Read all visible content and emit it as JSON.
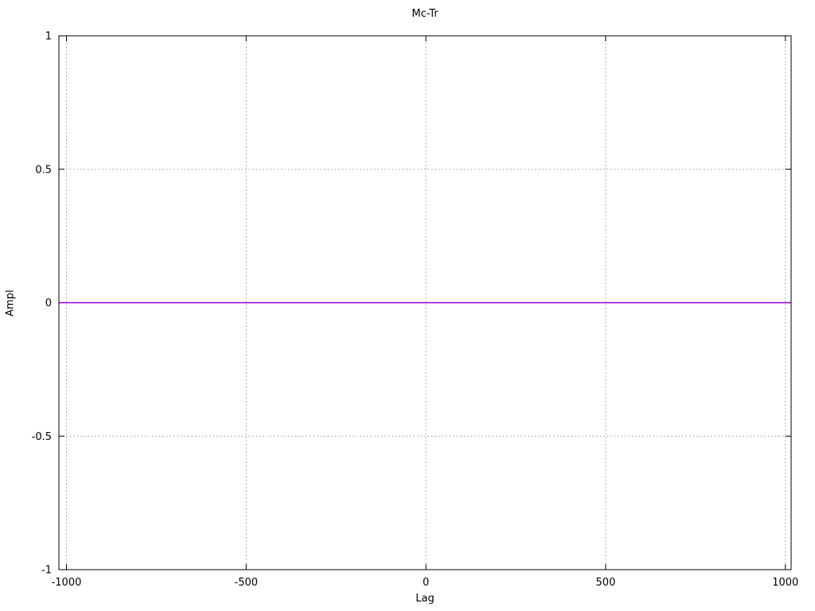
{
  "chart_data": {
    "type": "line",
    "title": "Mc-Tr",
    "xlabel": "Lag",
    "ylabel": "Ampl",
    "xlim": [
      -1021,
      1016
    ],
    "ylim": [
      -1,
      1
    ],
    "xticks": [
      -1000,
      -500,
      0,
      500,
      1000
    ],
    "yticks": [
      -1,
      -0.5,
      0,
      0.5,
      1
    ],
    "grid": true,
    "grid_style": "dotted",
    "legend": "none",
    "colors": {
      "background": "#ffffff",
      "grid": "#9a9a9a",
      "axis": "#000000",
      "text": "#000000"
    },
    "series": [
      {
        "name": "Mc-Tr",
        "color": "#9400d3",
        "points": [
          [
            -1021,
            0
          ],
          [
            1016,
            0
          ]
        ]
      }
    ]
  }
}
